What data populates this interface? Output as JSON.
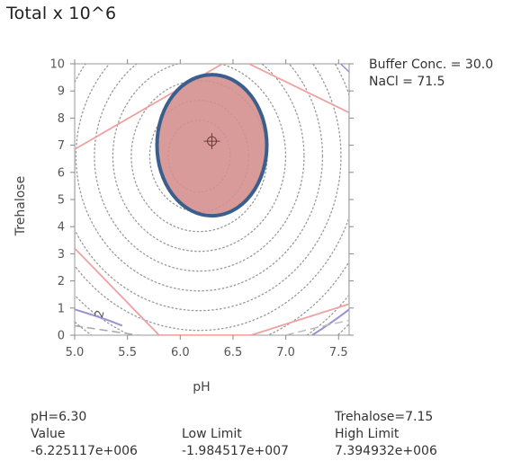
{
  "title": "Total x 10^6",
  "annotations": [
    "Buffer Conc. = 30.0",
    "NaCl = 71.5"
  ],
  "chart_data": {
    "type": "contour",
    "xlabel": "pH",
    "ylabel": "Trehalose",
    "xlim": [
      5.0,
      7.6
    ],
    "ylim": [
      0,
      10
    ],
    "xticks": [
      "5.0",
      "5.5",
      "6.0",
      "6.5",
      "7.0",
      "7.5"
    ],
    "yticks": [
      "0",
      "1",
      "2",
      "3",
      "4",
      "5",
      "6",
      "7",
      "8",
      "9",
      "10"
    ],
    "optimum": {
      "x": 6.3,
      "y": 7.15
    },
    "design_ellipse": {
      "cx": 6.3,
      "cy": 7.0,
      "rx": 0.52,
      "ry": 2.6
    },
    "contour_center": {
      "x": 6.18,
      "y": 6.6
    },
    "contour_label": "2",
    "constraint_polygon": [
      [
        5.0,
        6.85
      ],
      [
        5.0,
        3.2
      ],
      [
        5.8,
        0
      ],
      [
        6.67,
        0
      ],
      [
        7.6,
        1.15
      ],
      [
        7.6,
        8.2
      ],
      [
        6.65,
        10
      ],
      [
        6.4,
        10
      ]
    ],
    "colors": {
      "ellipse_fill": "#d4908f",
      "ellipse_stroke": "#3b5f8c",
      "constraint": "#f0a0a0",
      "contour": "#999999",
      "low_contour": "#9b8fd6"
    }
  },
  "footer": {
    "left_line1": "pH=6.30",
    "left_line2": "Value",
    "left_line3": "-6.225117e+006",
    "mid_line2": "Low Limit",
    "mid_line3": "-1.984517e+007",
    "right_line1": "Trehalose=7.15",
    "right_line2": "High Limit",
    "right_line3": "7.394932e+006"
  }
}
